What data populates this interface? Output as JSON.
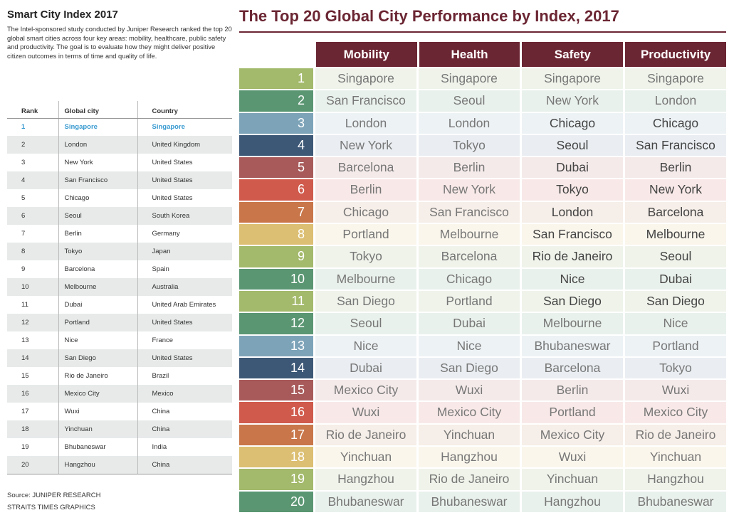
{
  "left": {
    "title": "Smart City Index 2017",
    "description": "The Intel-sponsored study conducted by Juniper Research ranked the top 20 global smart cities across four key areas: mobility, healthcare, public safety and productivity. The goal is to evaluate how they might deliver positive citizen outcomes in terms of time and quality of life.",
    "headers": [
      "Rank",
      "Global city",
      "Country"
    ],
    "rows": [
      [
        "1",
        "Singapore",
        "Singapore"
      ],
      [
        "2",
        "London",
        "United Kingdom"
      ],
      [
        "3",
        "New York",
        "United States"
      ],
      [
        "4",
        "San Francisco",
        "United States"
      ],
      [
        "5",
        "Chicago",
        "United States"
      ],
      [
        "6",
        "Seoul",
        "South Korea"
      ],
      [
        "7",
        "Berlin",
        "Germany"
      ],
      [
        "8",
        "Tokyo",
        "Japan"
      ],
      [
        "9",
        "Barcelona",
        "Spain"
      ],
      [
        "10",
        "Melbourne",
        "Australia"
      ],
      [
        "11",
        "Dubai",
        "United Arab Emirates"
      ],
      [
        "12",
        "Portland",
        "United States"
      ],
      [
        "13",
        "Nice",
        "France"
      ],
      [
        "14",
        "San Diego",
        "United States"
      ],
      [
        "15",
        "Rio de Janeiro",
        "Brazil"
      ],
      [
        "16",
        "Mexico City",
        "Mexico"
      ],
      [
        "17",
        "Wuxi",
        "China"
      ],
      [
        "18",
        "Yinchuan",
        "China"
      ],
      [
        "19",
        "Bhubaneswar",
        "India"
      ],
      [
        "20",
        "Hangzhou",
        "China"
      ]
    ],
    "source": "Source: JUNIPER RESEARCH",
    "credit": "STRAITS TIMES GRAPHICS",
    "highlight_color": "#3a9bd0"
  },
  "right": {
    "title": "The Top 20 Global City Performance by Index, 2017",
    "title_color": "#6b2633",
    "headers": [
      "Mobility",
      "Health",
      "Safety",
      "Productivity"
    ],
    "rank_colors": [
      "#a3b96b",
      "#5a9672",
      "#7da3b8",
      "#3d5877",
      "#a85a5a",
      "#d05a4c",
      "#c8764a",
      "#dcbf72",
      "#a3b96b",
      "#5a9672"
    ],
    "row_tints": [
      "#eff3ea",
      "#e9f1ec",
      "#edf2f5",
      "#eaeef2",
      "#f5eaea",
      "#f8e9e8",
      "#f6eee8",
      "#faf6ec",
      "#eff3ea",
      "#e9f1ec"
    ],
    "rows": [
      [
        "1",
        "Singapore",
        "Singapore",
        "Singapore",
        "Singapore"
      ],
      [
        "2",
        "San Francisco",
        "Seoul",
        "New York",
        "London"
      ],
      [
        "3",
        "London",
        "London",
        "Chicago",
        "Chicago"
      ],
      [
        "4",
        "New York",
        "Tokyo",
        "Seoul",
        "San Francisco"
      ],
      [
        "5",
        "Barcelona",
        "Berlin",
        "Dubai",
        "Berlin"
      ],
      [
        "6",
        "Berlin",
        "New York",
        "Tokyo",
        "New York"
      ],
      [
        "7",
        "Chicago",
        "San Francisco",
        "London",
        "Barcelona"
      ],
      [
        "8",
        "Portland",
        "Melbourne",
        "San Francisco",
        "Melbourne"
      ],
      [
        "9",
        "Tokyo",
        "Barcelona",
        "Rio de Janeiro",
        "Seoul"
      ],
      [
        "10",
        "Melbourne",
        "Chicago",
        "Nice",
        "Dubai"
      ],
      [
        "11",
        "San Diego",
        "Portland",
        "San Diego",
        "San Diego"
      ],
      [
        "12",
        "Seoul",
        "Dubai",
        "Melbourne",
        "Nice"
      ],
      [
        "13",
        "Nice",
        "Nice",
        "Bhubaneswar",
        "Portland"
      ],
      [
        "14",
        "Dubai",
        "San Diego",
        "Barcelona",
        "Tokyo"
      ],
      [
        "15",
        "Mexico City",
        "Wuxi",
        "Berlin",
        "Wuxi"
      ],
      [
        "16",
        "Wuxi",
        "Mexico City",
        "Portland",
        "Mexico City"
      ],
      [
        "17",
        "Rio de Janeiro",
        "Yinchuan",
        "Mexico City",
        "Rio de Janeiro"
      ],
      [
        "18",
        "Yinchuan",
        "Hangzhou",
        "Wuxi",
        "Yinchuan"
      ],
      [
        "19",
        "Hangzhou",
        "Rio de Janeiro",
        "Yinchuan",
        "Hangzhou"
      ],
      [
        "20",
        "Bhubaneswar",
        "Bhubaneswar",
        "Hangzhou",
        "Bhubaneswar"
      ]
    ]
  }
}
